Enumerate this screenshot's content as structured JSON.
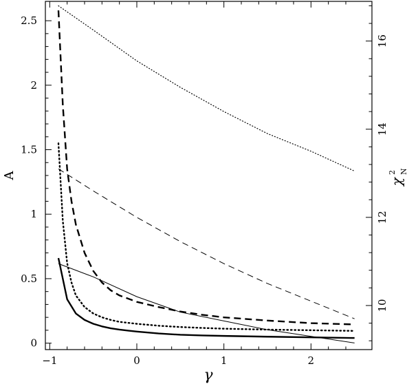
{
  "chart_data": {
    "type": "line",
    "title": "",
    "xlabel": "γ",
    "ylabel_left": "A",
    "ylabel_right": "χ",
    "ylabel_right_sub": "N",
    "ylabel_right_sup": "2",
    "xlim": [
      -1.05,
      2.7
    ],
    "ylim_left": [
      -0.05,
      2.65
    ],
    "ylim_right": [
      9.0,
      16.9
    ],
    "x_ticks": [
      -1,
      0,
      1,
      2
    ],
    "x_tick_labels": [
      "−1",
      "0",
      "1",
      "2"
    ],
    "y_left_ticks": [
      0,
      0.5,
      1,
      1.5,
      2,
      2.5
    ],
    "y_left_tick_labels": [
      "0",
      "0.5",
      "1",
      "1.5",
      "2",
      "2.5"
    ],
    "y_right_ticks": [
      10,
      12,
      14,
      16
    ],
    "y_right_tick_labels": [
      "10",
      "12",
      "14",
      "16"
    ],
    "grid": false,
    "legend": "none",
    "series": [
      {
        "axis": "left",
        "style": "thick-solid",
        "x": [
          -0.9,
          -0.8,
          -0.7,
          -0.6,
          -0.5,
          -0.4,
          -0.3,
          -0.2,
          -0.1,
          0.0,
          0.25,
          0.5,
          0.75,
          1.0,
          1.5,
          2.0,
          2.5
        ],
        "values": [
          0.66,
          0.34,
          0.23,
          0.18,
          0.15,
          0.13,
          0.115,
          0.105,
          0.097,
          0.09,
          0.075,
          0.065,
          0.06,
          0.056,
          0.05,
          0.045,
          0.04
        ]
      },
      {
        "axis": "left",
        "style": "thick-dotted",
        "x": [
          -0.9,
          -0.85,
          -0.8,
          -0.75,
          -0.7,
          -0.6,
          -0.5,
          -0.4,
          -0.3,
          -0.2,
          0.0,
          0.25,
          0.5,
          0.75,
          1.0,
          1.5,
          2.0,
          2.5
        ],
        "values": [
          1.55,
          0.95,
          0.62,
          0.47,
          0.37,
          0.28,
          0.23,
          0.2,
          0.18,
          0.165,
          0.15,
          0.135,
          0.125,
          0.118,
          0.112,
          0.105,
          0.1,
          0.095
        ]
      },
      {
        "axis": "left",
        "style": "thick-dashed",
        "x": [
          -0.9,
          -0.85,
          -0.8,
          -0.75,
          -0.7,
          -0.6,
          -0.5,
          -0.4,
          -0.3,
          -0.2,
          0.0,
          0.25,
          0.5,
          0.75,
          1.0,
          1.5,
          2.0,
          2.5
        ],
        "values": [
          2.58,
          1.85,
          1.35,
          1.1,
          0.92,
          0.7,
          0.56,
          0.47,
          0.41,
          0.37,
          0.32,
          0.28,
          0.245,
          0.22,
          0.2,
          0.175,
          0.155,
          0.145
        ]
      },
      {
        "axis": "right",
        "style": "thin-solid",
        "x": [
          -0.9,
          -0.5,
          0.0,
          0.5,
          1.0,
          1.5,
          2.0,
          2.5
        ],
        "values": [
          10.95,
          10.65,
          10.2,
          9.85,
          9.65,
          9.45,
          9.3,
          9.15
        ]
      },
      {
        "axis": "right",
        "style": "thin-dashed",
        "x": [
          -0.9,
          -0.5,
          0.0,
          0.5,
          1.0,
          1.5,
          2.0,
          2.5
        ],
        "values": [
          13.1,
          12.6,
          12.0,
          11.45,
          10.95,
          10.5,
          10.1,
          9.7
        ]
      },
      {
        "axis": "right",
        "style": "thin-dotted",
        "x": [
          -0.9,
          -0.5,
          0.0,
          0.5,
          1.0,
          1.5,
          2.0,
          2.5
        ],
        "values": [
          16.8,
          16.25,
          15.55,
          14.95,
          14.4,
          13.9,
          13.5,
          13.05
        ]
      }
    ]
  }
}
